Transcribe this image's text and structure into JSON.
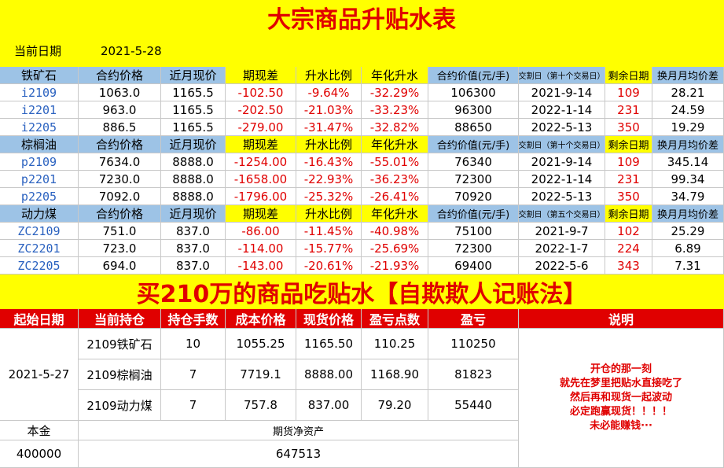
{
  "title": "大宗商品升贴水表",
  "date_label": "当前日期",
  "date": "2021-5-28",
  "sections": [
    {
      "header": [
        "铁矿石",
        "合约价格",
        "近月现价",
        "期现差",
        "升水比例",
        "年化升水",
        "合约价值(元/手)",
        "交割日（第十个交易日）",
        "剩余日期",
        "换月月均价差"
      ],
      "rows": [
        [
          "i2109",
          "1063.0",
          "1165.5",
          "-102.50",
          "-9.64%",
          "-32.29%",
          "106300",
          "2021-9-14",
          "109",
          "28.21"
        ],
        [
          "i2201",
          "963.0",
          "1165.5",
          "-202.50",
          "-21.03%",
          "-33.23%",
          "96300",
          "2022-1-14",
          "231",
          "24.59"
        ],
        [
          "i2205",
          "886.5",
          "1165.5",
          "-279.00",
          "-31.47%",
          "-32.82%",
          "88650",
          "2022-5-13",
          "350",
          "19.29"
        ]
      ]
    },
    {
      "header": [
        "棕榈油",
        "合约价格",
        "近月现价",
        "期现差",
        "升水比例",
        "年化升水",
        "合约价值(元/手)",
        "交割日（第十个交易日）",
        "剩余日期",
        "换月月均价差"
      ],
      "rows": [
        [
          "p2109",
          "7634.0",
          "8888.0",
          "-1254.00",
          "-16.43%",
          "-55.01%",
          "76340",
          "2021-9-14",
          "109",
          "345.14"
        ],
        [
          "p2201",
          "7230.0",
          "8888.0",
          "-1658.00",
          "-22.93%",
          "-36.23%",
          "72300",
          "2022-1-14",
          "231",
          "99.34"
        ],
        [
          "p2205",
          "7092.0",
          "8888.0",
          "-1796.00",
          "-25.32%",
          "-26.41%",
          "70920",
          "2022-5-13",
          "350",
          "34.79"
        ]
      ]
    },
    {
      "header": [
        "动力煤",
        "合约价格",
        "近月现价",
        "期现差",
        "升水比例",
        "年化升水",
        "合约价值(元/手)",
        "交割日（第五个交易日）",
        "剩余日期",
        "换月月均价差"
      ],
      "rows": [
        [
          "ZC2109",
          "751.0",
          "837.0",
          "-86.00",
          "-11.45%",
          "-40.98%",
          "75100",
          "2021-9-7",
          "102",
          "25.29"
        ],
        [
          "ZC2201",
          "723.0",
          "837.0",
          "-114.00",
          "-15.77%",
          "-25.69%",
          "72300",
          "2022-1-7",
          "224",
          "6.89"
        ],
        [
          "ZC2205",
          "694.0",
          "837.0",
          "-143.00",
          "-20.61%",
          "-21.93%",
          "69400",
          "2022-5-6",
          "343",
          "7.31"
        ]
      ]
    }
  ],
  "title2": "买210万的商品吃贴水【自欺欺人记账法】",
  "pnl": {
    "header": [
      "起始日期",
      "当前持仓",
      "持仓手数",
      "成本价格",
      "现货价格",
      "盈亏点数",
      "盈亏",
      "说明"
    ],
    "start_date": "2021-5-27",
    "rows": [
      [
        "2109铁矿石",
        "10",
        "1055.25",
        "1165.50",
        "110.25",
        "110250"
      ],
      [
        "2109棕榈油",
        "7",
        "7719.1",
        "8888.00",
        "1168.90",
        "81823"
      ],
      [
        "2109动力煤",
        "7",
        "757.8",
        "837.00",
        "79.20",
        "55440"
      ]
    ],
    "principal_label": "本金",
    "principal": "400000",
    "net_label": "期货净资产",
    "net": "647513",
    "note": [
      "开仓的那一刻",
      "就先在梦里把贴水直接吃了",
      "然后再和现货一起波动",
      "必定跑赢现货！！！！",
      "未必能赚钱···"
    ]
  }
}
